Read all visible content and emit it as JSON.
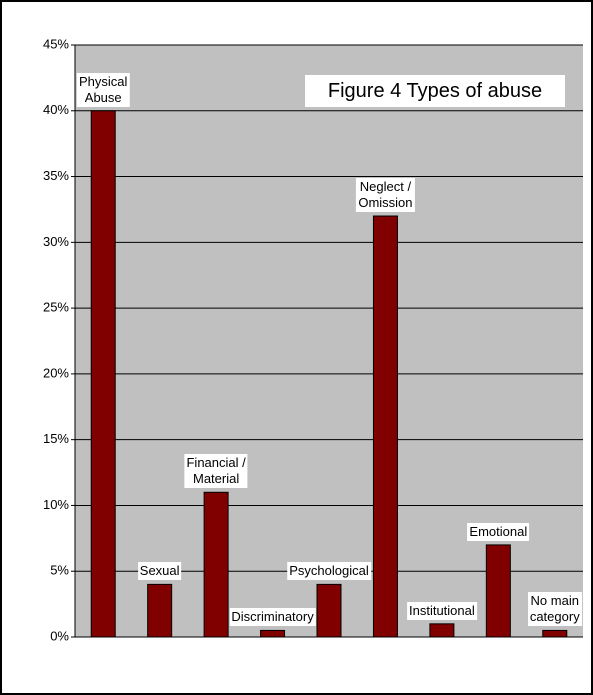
{
  "chart_data": {
    "type": "bar",
    "title": "Figure 4 Types of abuse",
    "categories": [
      "Physical\nAbuse",
      "Sexual",
      "Financial /\nMaterial",
      "Discriminatory",
      "Psychological",
      "Neglect /\nOmission",
      "Institutional",
      "Emotional",
      "No main\ncategory"
    ],
    "values": [
      40,
      4,
      11,
      0.5,
      4,
      32,
      1,
      7,
      0.5
    ],
    "color": "#800000",
    "ylim": [
      0,
      45
    ],
    "yticks": [
      {
        "value": 0,
        "label": "0%"
      },
      {
        "value": 5,
        "label": "5%"
      },
      {
        "value": 10,
        "label": "10%"
      },
      {
        "value": 15,
        "label": "15%"
      },
      {
        "value": 20,
        "label": "20%"
      },
      {
        "value": 25,
        "label": "25%"
      },
      {
        "value": 30,
        "label": "30%"
      },
      {
        "value": 35,
        "label": "35%"
      },
      {
        "value": 40,
        "label": "40%"
      },
      {
        "value": 45,
        "label": "45%"
      }
    ],
    "grid": true
  }
}
